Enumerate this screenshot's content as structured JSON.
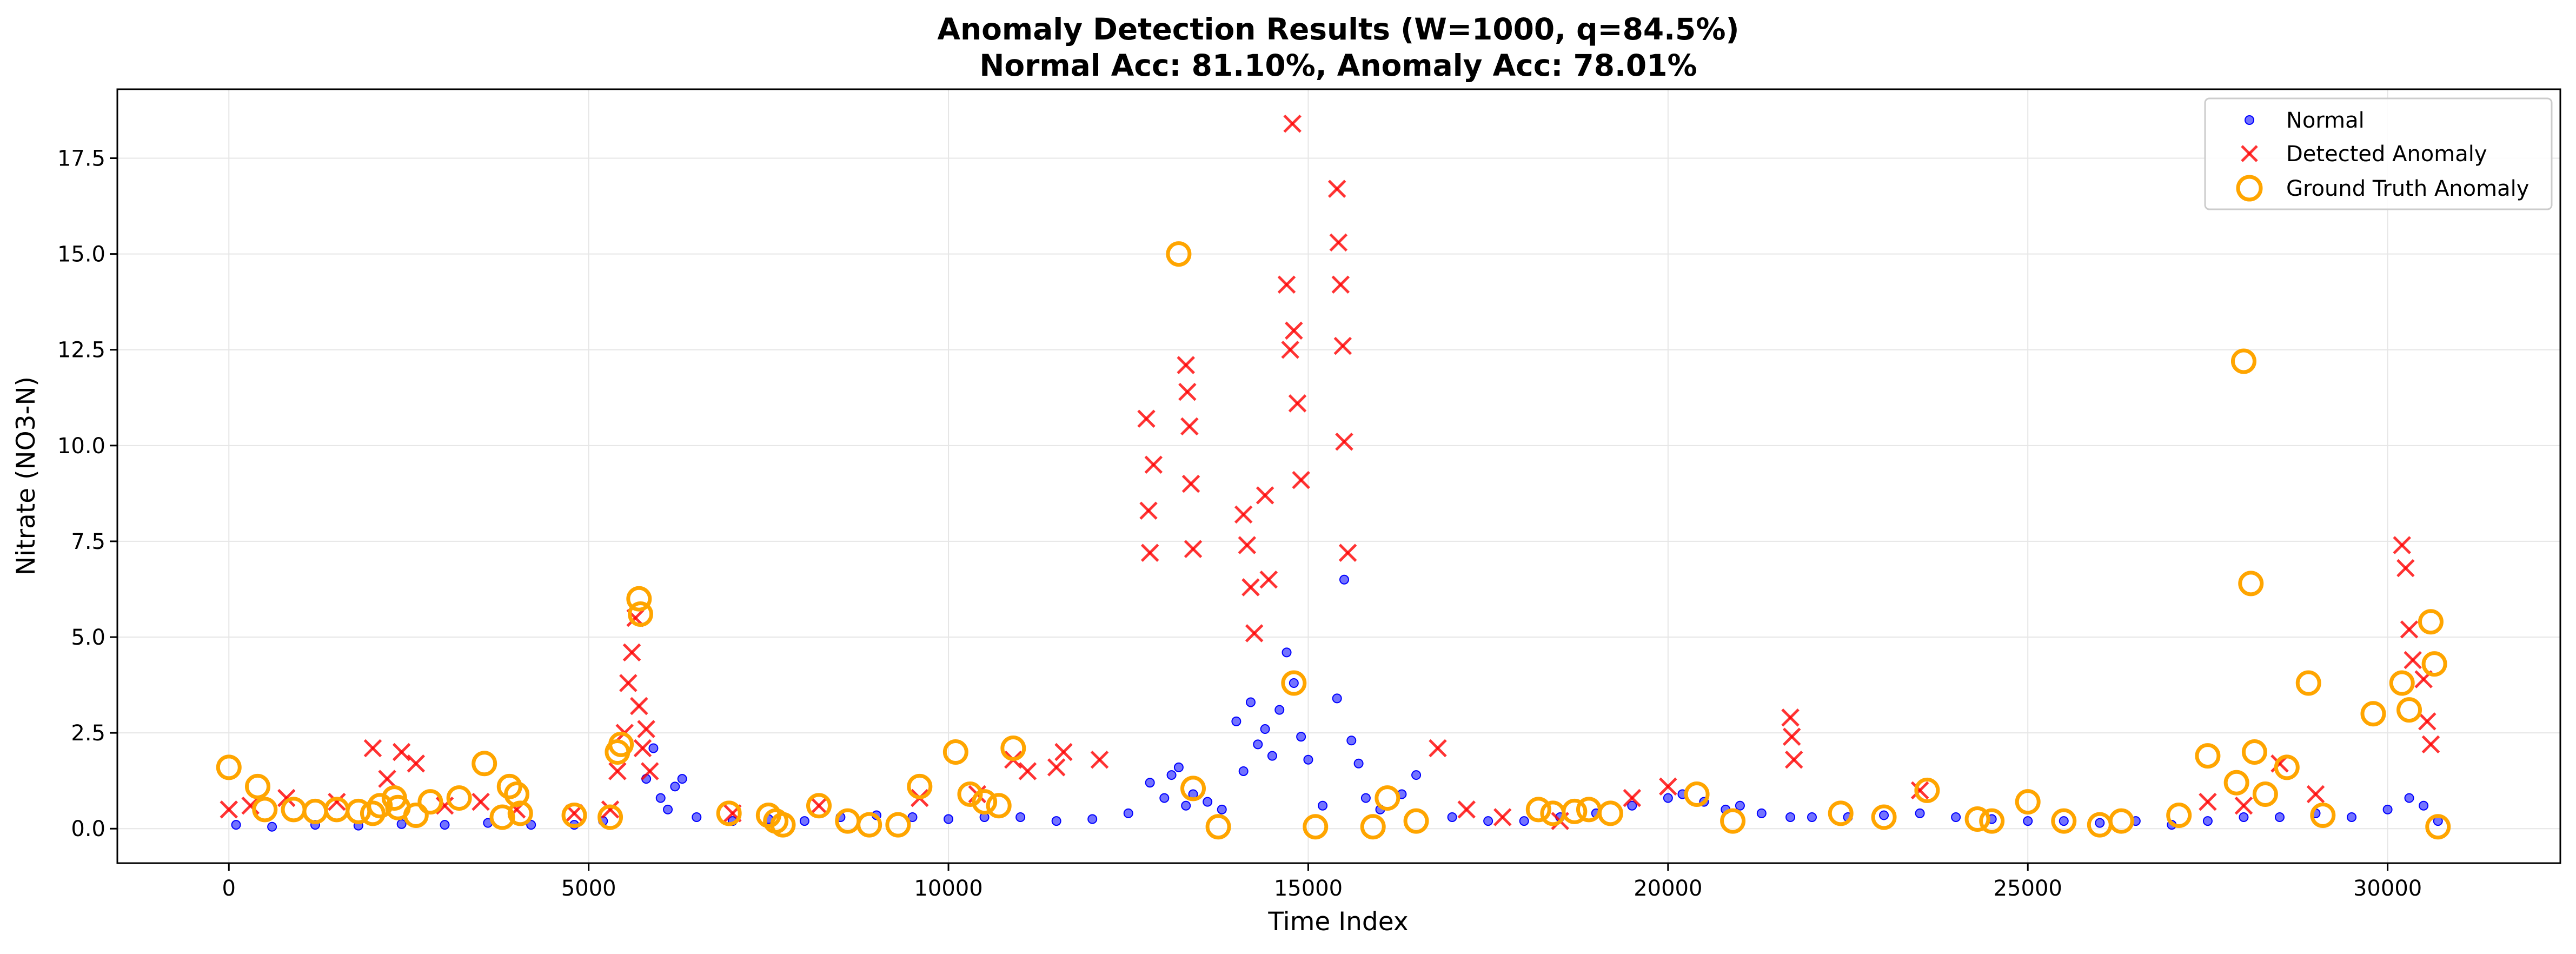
{
  "chart_data": {
    "type": "scatter",
    "title": [
      "Anomaly Detection Results (W=1000, q=84.5%)",
      "Normal Acc: 81.10%, Anomaly Acc: 78.01%"
    ],
    "xlabel": "Time Index",
    "ylabel": "Nitrate (NO3-N)",
    "xlim": [
      -1550,
      32400
    ],
    "ylim": [
      -0.9,
      19.3
    ],
    "xticks": [
      0,
      5000,
      10000,
      15000,
      20000,
      25000,
      30000
    ],
    "yticks": [
      0.0,
      2.5,
      5.0,
      7.5,
      10.0,
      12.5,
      15.0,
      17.5
    ],
    "grid": true,
    "legend_position": "top-right",
    "legend": [
      "Normal",
      "Detected Anomaly",
      "Ground Truth Anomaly"
    ],
    "colors": {
      "normal": "#0000ff",
      "detected": "#ff0000",
      "ground_truth": "#ffa500",
      "grid": "#e6e6e6",
      "axis": "#000000"
    },
    "series": [
      {
        "name": "Normal",
        "marker": "dot",
        "x": [
          100,
          600,
          1200,
          1800,
          2400,
          3000,
          3600,
          4200,
          4800,
          5200,
          5800,
          5900,
          6000,
          6100,
          6200,
          6300,
          6500,
          7000,
          7500,
          8000,
          8500,
          9000,
          9500,
          10000,
          10500,
          11000,
          11500,
          12000,
          12500,
          12800,
          13000,
          13100,
          13200,
          13300,
          13400,
          13600,
          13800,
          14000,
          14100,
          14200,
          14300,
          14400,
          14500,
          14600,
          14700,
          14800,
          14900,
          15000,
          15200,
          15400,
          15500,
          15600,
          15700,
          15800,
          16000,
          16300,
          16500,
          17000,
          17500,
          18000,
          18500,
          19000,
          19500,
          20000,
          20200,
          20500,
          20800,
          21000,
          21300,
          21700,
          22000,
          22500,
          23000,
          23500,
          24000,
          24500,
          25000,
          25500,
          26000,
          26500,
          27000,
          27500,
          28000,
          28500,
          29000,
          29500,
          30000,
          30300,
          30500,
          30700
        ],
        "y": [
          0.1,
          0.05,
          0.1,
          0.08,
          0.12,
          0.1,
          0.15,
          0.1,
          0.1,
          0.2,
          1.3,
          2.1,
          0.8,
          0.5,
          1.1,
          1.3,
          0.3,
          0.2,
          0.25,
          0.2,
          0.3,
          0.35,
          0.3,
          0.25,
          0.3,
          0.3,
          0.2,
          0.25,
          0.4,
          1.2,
          0.8,
          1.4,
          1.6,
          0.6,
          0.9,
          0.7,
          0.5,
          2.8,
          1.5,
          3.3,
          2.2,
          2.6,
          1.9,
          3.1,
          4.6,
          3.8,
          2.4,
          1.8,
          0.6,
          3.4,
          6.5,
          2.3,
          1.7,
          0.8,
          0.5,
          0.9,
          1.4,
          0.3,
          0.2,
          0.2,
          0.3,
          0.4,
          0.6,
          0.8,
          0.9,
          0.7,
          0.5,
          0.6,
          0.4,
          0.3,
          0.3,
          0.3,
          0.35,
          0.4,
          0.3,
          0.25,
          0.2,
          0.2,
          0.15,
          0.2,
          0.1,
          0.2,
          0.3,
          0.3,
          0.4,
          0.3,
          0.5,
          0.8,
          0.6,
          0.2
        ]
      },
      {
        "name": "Detected Anomaly",
        "marker": "x",
        "x": [
          0,
          300,
          800,
          1500,
          2000,
          2200,
          2400,
          2600,
          3000,
          3500,
          4000,
          4800,
          5300,
          5400,
          5500,
          5550,
          5600,
          5650,
          5700,
          5750,
          5800,
          5850,
          7000,
          8200,
          9600,
          10400,
          10900,
          11100,
          11500,
          11600,
          12100,
          12750,
          12780,
          12800,
          12850,
          13300,
          13320,
          13350,
          13370,
          13400,
          14100,
          14150,
          14200,
          14250,
          14400,
          14450,
          14700,
          14750,
          14780,
          14800,
          14850,
          14900,
          15400,
          15420,
          15450,
          15480,
          15500,
          15550,
          16800,
          17200,
          17700,
          18500,
          19500,
          20000,
          21700,
          21720,
          21750,
          23500,
          27500,
          28000,
          28500,
          29000,
          30200,
          30250,
          30300,
          30350,
          30500,
          30550,
          30600
        ],
        "y": [
          0.5,
          0.6,
          0.8,
          0.7,
          2.1,
          1.3,
          2.0,
          1.7,
          0.6,
          0.7,
          0.5,
          0.4,
          0.5,
          1.5,
          2.5,
          3.8,
          4.6,
          5.5,
          3.2,
          2.1,
          2.6,
          1.5,
          0.4,
          0.6,
          0.8,
          0.9,
          1.8,
          1.5,
          1.6,
          2.0,
          1.8,
          10.7,
          8.3,
          7.2,
          9.5,
          12.1,
          11.4,
          10.5,
          9.0,
          7.3,
          8.2,
          7.4,
          6.3,
          5.1,
          8.7,
          6.5,
          14.2,
          12.5,
          18.4,
          13.0,
          11.1,
          9.1,
          16.7,
          15.3,
          14.2,
          12.6,
          10.1,
          7.2,
          2.1,
          0.5,
          0.3,
          0.2,
          0.8,
          1.1,
          2.9,
          2.4,
          1.8,
          1.0,
          0.7,
          0.6,
          1.7,
          0.9,
          7.4,
          6.8,
          5.2,
          4.4,
          3.9,
          2.8,
          2.2
        ]
      },
      {
        "name": "Ground Truth Anomaly",
        "marker": "circle",
        "x": [
          0,
          400,
          500,
          900,
          1200,
          1500,
          1800,
          2000,
          2100,
          2300,
          2350,
          2600,
          2800,
          3200,
          3550,
          3800,
          3900,
          4000,
          4050,
          4800,
          5300,
          5400,
          5450,
          5700,
          5720,
          6950,
          7500,
          7600,
          7700,
          8200,
          8600,
          8900,
          9300,
          9600,
          10100,
          10300,
          10500,
          10700,
          10900,
          13200,
          13400,
          13750,
          14800,
          15100,
          15900,
          16100,
          16500,
          18200,
          18400,
          18700,
          18900,
          19200,
          20400,
          20900,
          22400,
          23000,
          23600,
          24300,
          24500,
          25000,
          25500,
          26000,
          26300,
          27100,
          27500,
          27900,
          28000,
          28100,
          28150,
          28300,
          28600,
          28900,
          29100,
          29800,
          30200,
          30300,
          30600,
          30650,
          30700
        ],
        "y": [
          1.6,
          1.1,
          0.5,
          0.5,
          0.45,
          0.5,
          0.45,
          0.4,
          0.6,
          0.8,
          0.55,
          0.35,
          0.7,
          0.8,
          1.7,
          0.3,
          1.1,
          0.9,
          0.4,
          0.35,
          0.3,
          2.0,
          2.2,
          6.0,
          5.6,
          0.4,
          0.35,
          0.2,
          0.1,
          0.6,
          0.2,
          0.1,
          0.1,
          1.1,
          2.0,
          0.9,
          0.7,
          0.6,
          2.1,
          15.0,
          1.05,
          0.05,
          3.8,
          0.05,
          0.05,
          0.8,
          0.2,
          0.5,
          0.4,
          0.45,
          0.5,
          0.4,
          0.9,
          0.2,
          0.4,
          0.3,
          1.0,
          0.25,
          0.2,
          0.7,
          0.2,
          0.1,
          0.2,
          0.35,
          1.9,
          1.2,
          12.2,
          6.4,
          2.0,
          0.9,
          1.6,
          3.8,
          0.35,
          3.0,
          3.8,
          3.1,
          5.4,
          4.3,
          0.05
        ]
      }
    ]
  }
}
